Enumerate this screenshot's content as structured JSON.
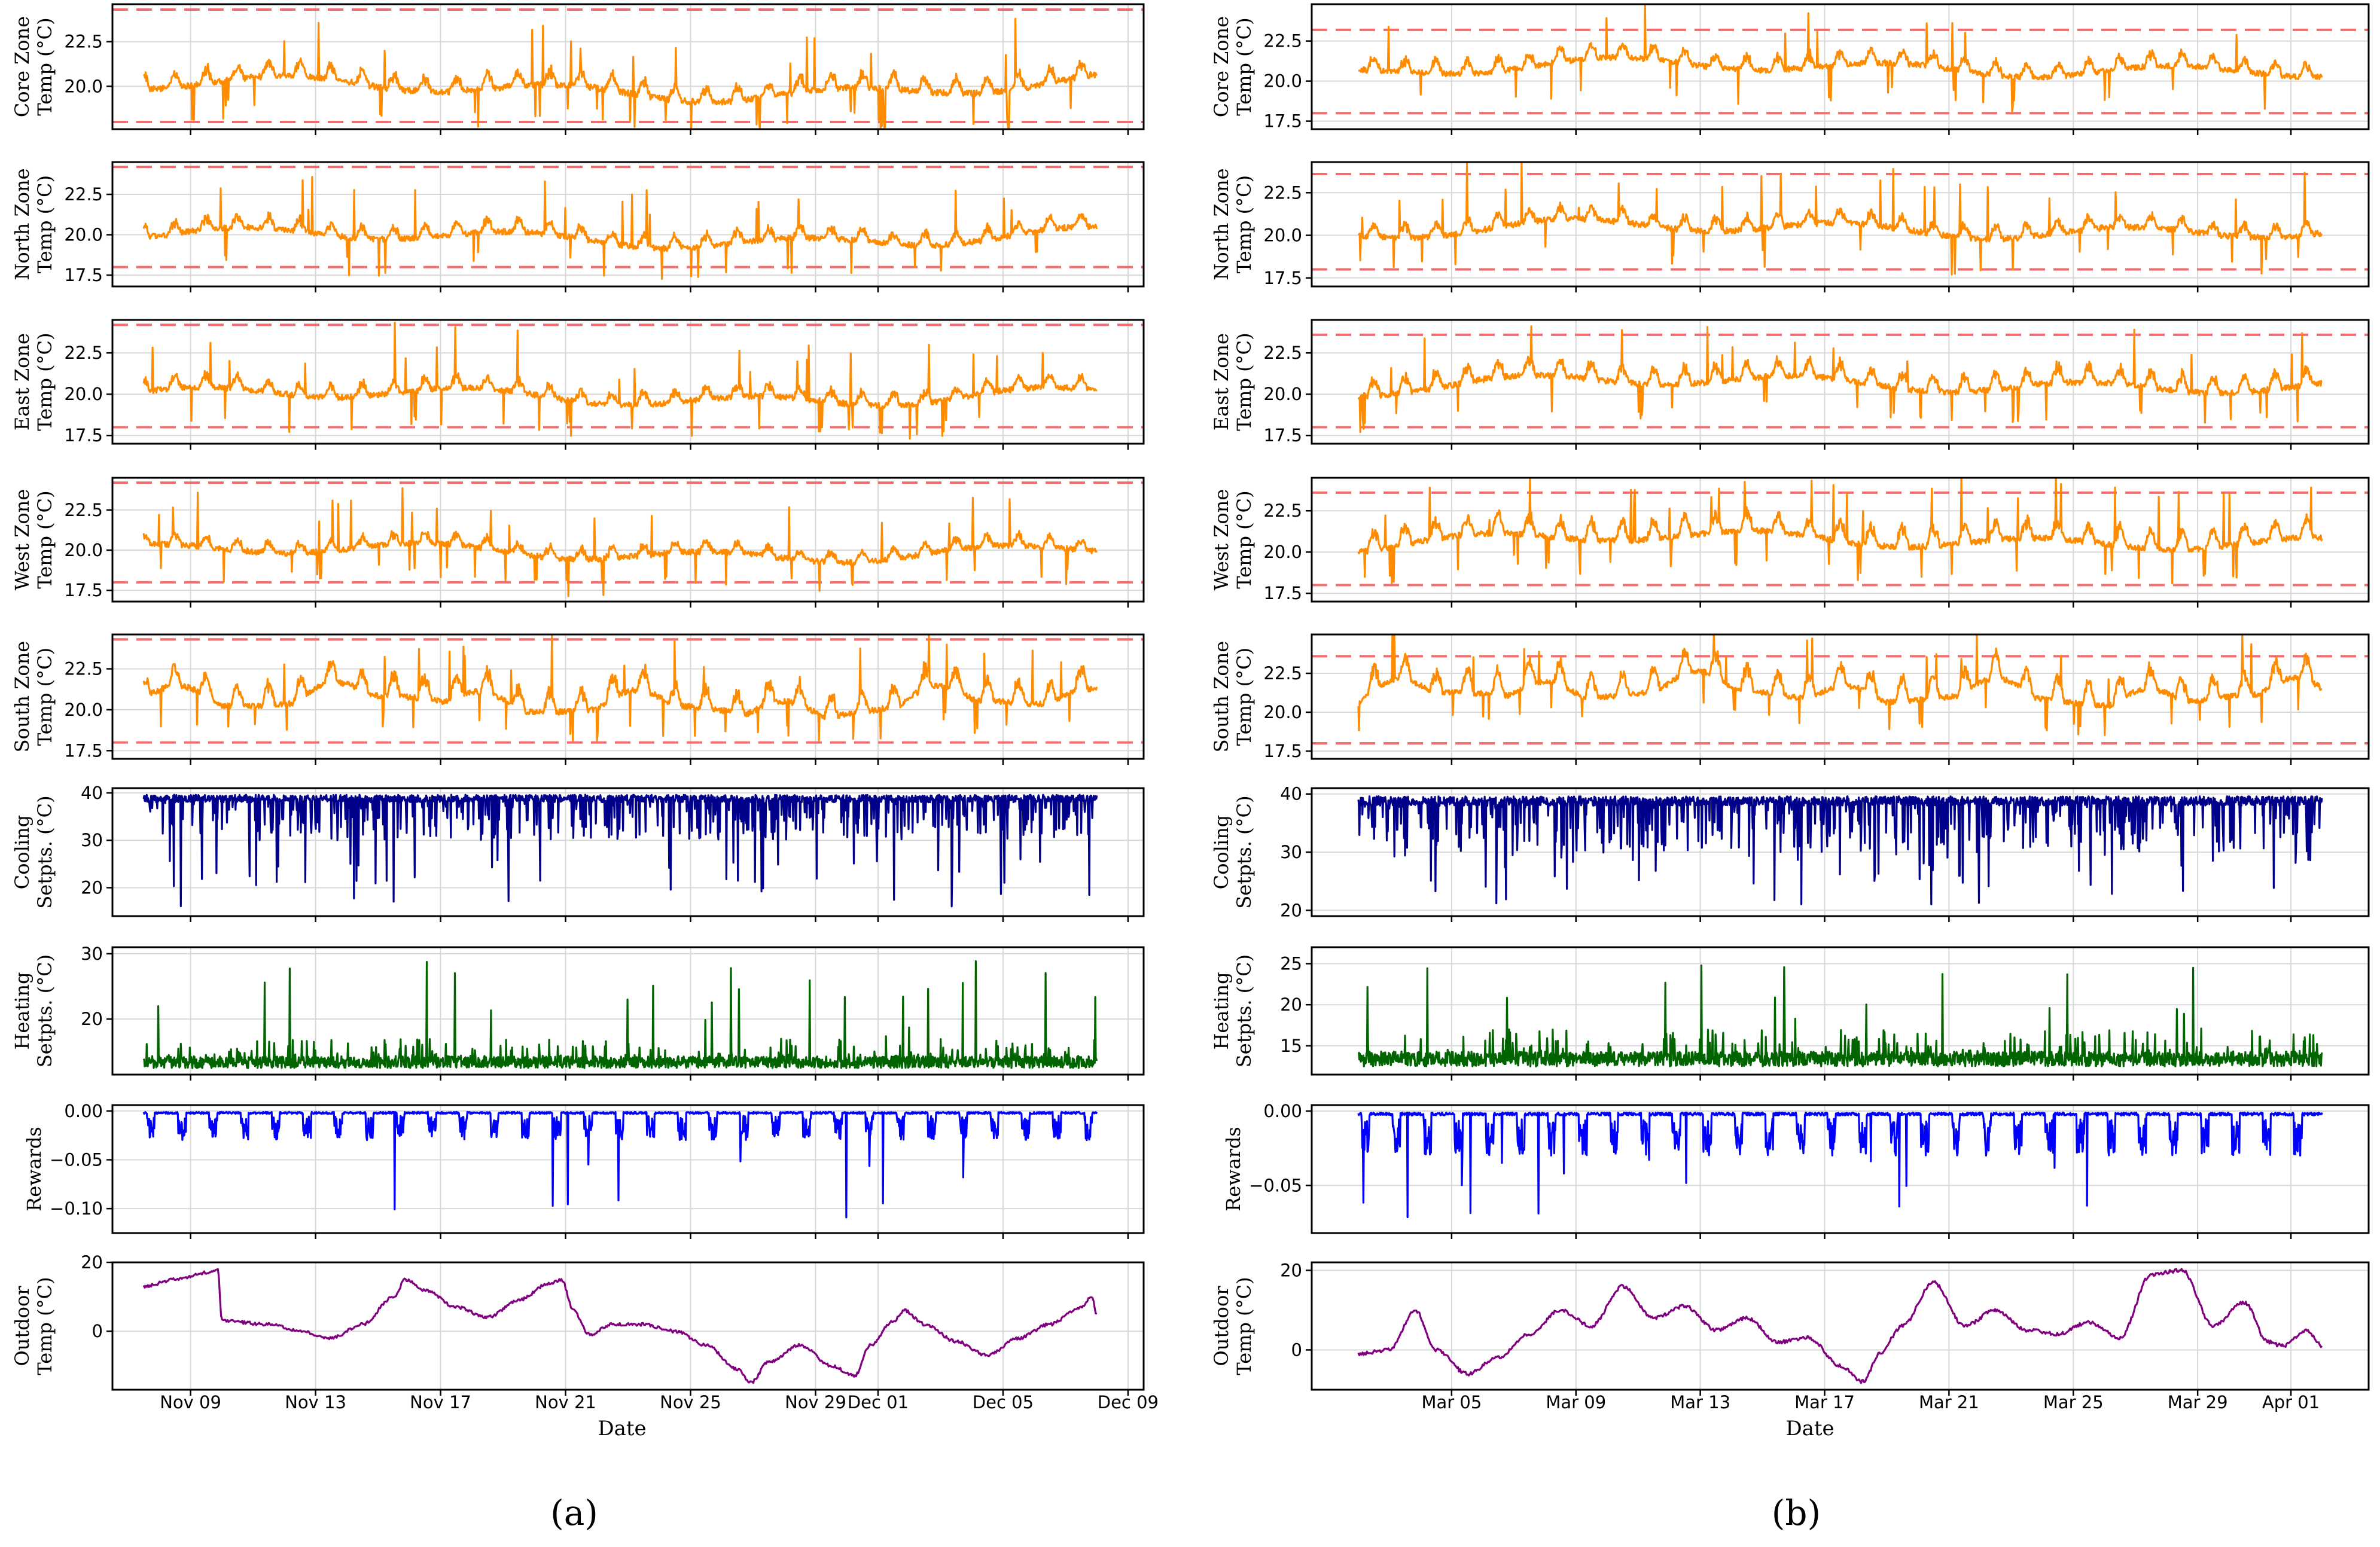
{
  "chart_data": [
    {
      "id": "a",
      "caption": "(a)",
      "type": "line",
      "xlabel": "Date",
      "x_start": "2023-11-07T12:00",
      "x_end": "2023-12-08T00:00",
      "xlim": [
        "2023-11-06T12:00",
        "2023-12-09T12:00"
      ],
      "xticks": [
        {
          "date": "2023-11-09",
          "label": "Nov 09"
        },
        {
          "date": "2023-11-13",
          "label": "Nov 13"
        },
        {
          "date": "2023-11-17",
          "label": "Nov 17"
        },
        {
          "date": "2023-11-21",
          "label": "Nov 21"
        },
        {
          "date": "2023-11-25",
          "label": "Nov 25"
        },
        {
          "date": "2023-11-29",
          "label": "Nov 29"
        },
        {
          "date": "2023-12-01",
          "label": "Dec 01"
        },
        {
          "date": "2023-12-05",
          "label": "Dec 05"
        },
        {
          "date": "2023-12-09",
          "label": "Dec 09"
        }
      ],
      "panels": [
        {
          "key": "core",
          "ylabel": [
            "Core Zone",
            "Temp (°C)"
          ],
          "ylim": [
            17.6,
            24.6
          ],
          "yticks": [
            20.0,
            22.5
          ],
          "color": "#ff8c00",
          "limits": [
            18.0,
            24.3
          ],
          "kind": "zone",
          "base": 20.2,
          "amp": 1.0,
          "trend": -0.5,
          "seed": 11
        },
        {
          "key": "north",
          "ylabel": [
            "North Zone",
            "Temp (°C)"
          ],
          "ylim": [
            16.8,
            24.5
          ],
          "yticks": [
            17.5,
            20.0,
            22.5
          ],
          "color": "#ff8c00",
          "limits": [
            18.0,
            24.2
          ],
          "kind": "zone",
          "base": 20.0,
          "amp": 0.9,
          "trend": -0.3,
          "seed": 12
        },
        {
          "key": "east",
          "ylabel": [
            "East Zone",
            "Temp (°C)"
          ],
          "ylim": [
            17.0,
            24.5
          ],
          "yticks": [
            17.5,
            20.0,
            22.5
          ],
          "color": "#ff8c00",
          "limits": [
            18.0,
            24.2
          ],
          "kind": "zone",
          "base": 20.0,
          "amp": 0.9,
          "trend": -0.2,
          "seed": 13
        },
        {
          "key": "west",
          "ylabel": [
            "West Zone",
            "Temp (°C)"
          ],
          "ylim": [
            16.8,
            24.5
          ],
          "yticks": [
            17.5,
            20.0,
            22.5
          ],
          "color": "#ff8c00",
          "limits": [
            18.0,
            24.2
          ],
          "kind": "zone",
          "base": 20.0,
          "amp": 0.8,
          "trend": -0.2,
          "seed": 14
        },
        {
          "key": "south",
          "ylabel": [
            "South Zone",
            "Temp (°C)"
          ],
          "ylim": [
            17.0,
            24.6
          ],
          "yticks": [
            17.5,
            20.0,
            22.5
          ],
          "color": "#ff8c00",
          "limits": [
            18.0,
            24.3
          ],
          "kind": "south",
          "base": 20.5,
          "amp": 1.6,
          "trend": -0.4,
          "seed": 15
        },
        {
          "key": "cooling",
          "ylabel": [
            "Cooling",
            "Setpts. (°C)"
          ],
          "ylim": [
            14,
            41
          ],
          "yticks": [
            20,
            30,
            40
          ],
          "color": "#00008b",
          "kind": "cooling",
          "seed": 16
        },
        {
          "key": "heating",
          "ylabel": [
            "Heating",
            "Setpts. (°C)"
          ],
          "ylim": [
            11.5,
            31
          ],
          "yticks": [
            20,
            30
          ],
          "color": "#006400",
          "kind": "heating",
          "seed": 17
        },
        {
          "key": "rewards",
          "ylabel": [
            "Rewards"
          ],
          "ylim": [
            -0.125,
            0.006
          ],
          "yticks": [
            -0.1,
            -0.05,
            0.0
          ],
          "ytick_labels": [
            "−0.10",
            "−0.05",
            "0.00"
          ],
          "color": "#0000ff",
          "kind": "rewards",
          "seed": 18
        },
        {
          "key": "outdoor",
          "ylabel": [
            "Outdoor",
            "Temp (°C)"
          ],
          "ylim": [
            -17,
            20
          ],
          "yticks": [
            0,
            20
          ],
          "color": "#800080",
          "kind": "outdoor",
          "outdoor_points": [
            [
              "2023-11-07T12:00",
              13
            ],
            [
              "2023-11-08T12:00",
              15
            ],
            [
              "2023-11-09T12:00",
              17
            ],
            [
              "2023-11-09T21:00",
              18
            ],
            [
              "2023-11-10T00:00",
              3
            ],
            [
              "2023-11-11T12:00",
              2
            ],
            [
              "2023-11-12T12:00",
              0
            ],
            [
              "2023-11-13T12:00",
              -2
            ],
            [
              "2023-11-14T12:00",
              2
            ],
            [
              "2023-11-15T12:00",
              10
            ],
            [
              "2023-11-15T21:00",
              15
            ],
            [
              "2023-11-16T12:00",
              12
            ],
            [
              "2023-11-17T12:00",
              7
            ],
            [
              "2023-11-18T12:00",
              4
            ],
            [
              "2023-11-19T12:00",
              9
            ],
            [
              "2023-11-20T12:00",
              14
            ],
            [
              "2023-11-20T21:00",
              15
            ],
            [
              "2023-11-21T06:00",
              6
            ],
            [
              "2023-11-21T18:00",
              -1
            ],
            [
              "2023-11-22T12:00",
              2
            ],
            [
              "2023-11-23T12:00",
              2
            ],
            [
              "2023-11-24T12:00",
              0
            ],
            [
              "2023-11-25T12:00",
              -4
            ],
            [
              "2023-11-26T12:00",
              -11
            ],
            [
              "2023-11-26T22:00",
              -15
            ],
            [
              "2023-11-27T12:00",
              -9
            ],
            [
              "2023-11-28T12:00",
              -4
            ],
            [
              "2023-11-29T12:00",
              -10
            ],
            [
              "2023-11-30T06:00",
              -13
            ],
            [
              "2023-11-30T18:00",
              -4
            ],
            [
              "2023-12-01T12:00",
              3
            ],
            [
              "2023-12-01T20:00",
              6
            ],
            [
              "2023-12-02T12:00",
              2
            ],
            [
              "2023-12-03T12:00",
              -3
            ],
            [
              "2023-12-04T12:00",
              -7
            ],
            [
              "2023-12-05T12:00",
              -2
            ],
            [
              "2023-12-06T12:00",
              2
            ],
            [
              "2023-12-07T12:00",
              7
            ],
            [
              "2023-12-07T20:00",
              10
            ],
            [
              "2023-12-08T00:00",
              5
            ]
          ]
        }
      ]
    },
    {
      "id": "b",
      "caption": "(b)",
      "type": "line",
      "xlabel": "Date",
      "x_start": "2024-03-02T00:00",
      "x_end": "2024-04-02T00:00",
      "xlim": [
        "2024-02-29T12:00",
        "2024-04-03T12:00"
      ],
      "xticks": [
        {
          "date": "2024-03-05",
          "label": "Mar 05"
        },
        {
          "date": "2024-03-09",
          "label": "Mar 09"
        },
        {
          "date": "2024-03-13",
          "label": "Mar 13"
        },
        {
          "date": "2024-03-17",
          "label": "Mar 17"
        },
        {
          "date": "2024-03-21",
          "label": "Mar 21"
        },
        {
          "date": "2024-03-25",
          "label": "Mar 25"
        },
        {
          "date": "2024-03-29",
          "label": "Mar 29"
        },
        {
          "date": "2024-04-01",
          "label": "Apr 01"
        }
      ],
      "panels": [
        {
          "key": "core",
          "ylabel": [
            "Core Zone",
            "Temp (°C)"
          ],
          "ylim": [
            17.0,
            24.8
          ],
          "yticks": [
            17.5,
            20.0,
            22.5
          ],
          "color": "#ff8c00",
          "limits": [
            18.0,
            23.2
          ],
          "kind": "zone",
          "base": 20.4,
          "amp": 1.0,
          "trend": 0.6,
          "seed": 21
        },
        {
          "key": "north",
          "ylabel": [
            "North Zone",
            "Temp (°C)"
          ],
          "ylim": [
            17.0,
            24.3
          ],
          "yticks": [
            17.5,
            20.0,
            22.5
          ],
          "color": "#ff8c00",
          "limits": [
            18.0,
            23.6
          ],
          "kind": "zone",
          "base": 20.0,
          "amp": 0.9,
          "trend": 0.5,
          "seed": 22
        },
        {
          "key": "east",
          "ylabel": [
            "East Zone",
            "Temp (°C)"
          ],
          "ylim": [
            17.0,
            24.5
          ],
          "yticks": [
            17.5,
            20.0,
            22.5
          ],
          "color": "#ff8c00",
          "limits": [
            18.0,
            23.6
          ],
          "kind": "zone",
          "base": 20.2,
          "amp": 1.2,
          "trend": 0.6,
          "seed": 23
        },
        {
          "key": "west",
          "ylabel": [
            "West Zone",
            "Temp (°C)"
          ],
          "ylim": [
            17.0,
            24.5
          ],
          "yticks": [
            17.5,
            20.0,
            22.5
          ],
          "color": "#ff8c00",
          "limits": [
            18.0,
            23.6
          ],
          "kind": "zone",
          "base": 20.3,
          "amp": 1.4,
          "trend": 0.6,
          "seed": 24
        },
        {
          "key": "south",
          "ylabel": [
            "South Zone",
            "Temp (°C)"
          ],
          "ylim": [
            17.0,
            25.0
          ],
          "yticks": [
            17.5,
            20.0,
            22.5
          ],
          "color": "#ff8c00",
          "limits": [
            18.0,
            23.6
          ],
          "kind": "south",
          "base": 20.6,
          "amp": 1.8,
          "trend": 0.5,
          "seed": 25
        },
        {
          "key": "cooling",
          "ylabel": [
            "Cooling",
            "Setpts. (°C)"
          ],
          "ylim": [
            19,
            41
          ],
          "yticks": [
            20,
            30,
            40
          ],
          "color": "#00008b",
          "kind": "cooling",
          "seed": 26
        },
        {
          "key": "heating",
          "ylabel": [
            "Heating",
            "Setpts. (°C)"
          ],
          "ylim": [
            11.5,
            27
          ],
          "yticks": [
            15,
            20,
            25
          ],
          "color": "#006400",
          "kind": "heating",
          "seed": 27
        },
        {
          "key": "rewards",
          "ylabel": [
            "Rewards"
          ],
          "ylim": [
            -0.082,
            0.004
          ],
          "yticks": [
            -0.05,
            0.0
          ],
          "ytick_labels": [
            "−0.05",
            "0.00"
          ],
          "color": "#0000ff",
          "kind": "rewards",
          "seed": 28
        },
        {
          "key": "outdoor",
          "ylabel": [
            "Outdoor",
            "Temp (°C)"
          ],
          "ylim": [
            -10,
            22
          ],
          "yticks": [
            0,
            20
          ],
          "color": "#800080",
          "kind": "outdoor",
          "outdoor_points": [
            [
              "2024-03-02T00:00",
              -1
            ],
            [
              "2024-03-03T00:00",
              0
            ],
            [
              "2024-03-03T20:00",
              10
            ],
            [
              "2024-03-04T12:00",
              0
            ],
            [
              "2024-03-05T12:00",
              -6
            ],
            [
              "2024-03-06T12:00",
              -2
            ],
            [
              "2024-03-07T12:00",
              4
            ],
            [
              "2024-03-08T12:00",
              10
            ],
            [
              "2024-03-09T12:00",
              6
            ],
            [
              "2024-03-10T12:00",
              16
            ],
            [
              "2024-03-11T12:00",
              8
            ],
            [
              "2024-03-12T12:00",
              11
            ],
            [
              "2024-03-13T12:00",
              5
            ],
            [
              "2024-03-14T12:00",
              8
            ],
            [
              "2024-03-15T12:00",
              2
            ],
            [
              "2024-03-16T12:00",
              3
            ],
            [
              "2024-03-17T12:00",
              -4
            ],
            [
              "2024-03-18T06:00",
              -8
            ],
            [
              "2024-03-18T18:00",
              -1
            ],
            [
              "2024-03-19T12:00",
              6
            ],
            [
              "2024-03-20T12:00",
              17
            ],
            [
              "2024-03-21T12:00",
              6
            ],
            [
              "2024-03-22T12:00",
              10
            ],
            [
              "2024-03-23T12:00",
              5
            ],
            [
              "2024-03-24T12:00",
              4
            ],
            [
              "2024-03-25T12:00",
              7
            ],
            [
              "2024-03-26T12:00",
              3
            ],
            [
              "2024-03-27T12:00",
              19
            ],
            [
              "2024-03-28T12:00",
              20
            ],
            [
              "2024-03-29T12:00",
              6
            ],
            [
              "2024-03-30T12:00",
              12
            ],
            [
              "2024-03-31T06:00",
              2
            ],
            [
              "2024-03-31T18:00",
              1
            ],
            [
              "2024-04-01T12:00",
              5
            ],
            [
              "2024-04-02T00:00",
              1
            ]
          ]
        }
      ]
    }
  ]
}
